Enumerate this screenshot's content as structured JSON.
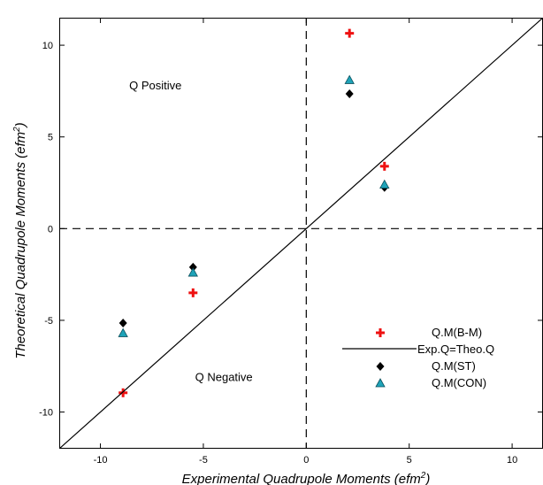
{
  "chart_data": {
    "type": "scatter",
    "xlabel": "Experimental Quadrupole Moments (efm",
    "xlabel_sup": "2",
    "xlabel_end": ")",
    "ylabel": "Theoretical Quadrupole Moments (efm",
    "ylabel_sup": "2",
    "ylabel_end": ")",
    "xlim": [
      -12,
      11.5
    ],
    "ylim": [
      -12,
      11.5
    ],
    "xticks": [
      -10,
      -5,
      0,
      5,
      10
    ],
    "yticks": [
      -10,
      -5,
      0,
      5,
      10
    ],
    "grid": false,
    "legend_position": "bottom-right",
    "annotations": [
      {
        "text": "Q Positive",
        "x": -8.6,
        "y": 7.6
      },
      {
        "text": "Q Negative",
        "x": -5.4,
        "y": -8.3
      }
    ],
    "reference_lines": [
      {
        "orientation": "vertical",
        "value": 0,
        "style": "dashed"
      },
      {
        "orientation": "horizontal",
        "value": 0,
        "style": "dashed"
      }
    ],
    "series": [
      {
        "name": "Q.M(B-M)",
        "marker": "plus",
        "color": "#ee1111",
        "points": [
          [
            -8.9,
            -8.95
          ],
          [
            -5.5,
            -3.5
          ],
          [
            2.1,
            10.65
          ],
          [
            3.8,
            3.4
          ]
        ]
      },
      {
        "name": "Exp.Q=Theo.Q",
        "marker": "line",
        "color": "#000000",
        "points": [
          [
            -12,
            -12
          ],
          [
            11.5,
            11.5
          ]
        ]
      },
      {
        "name": "Q.M(ST)",
        "marker": "diamond",
        "color": "#000000",
        "points": [
          [
            -8.9,
            -5.15
          ],
          [
            -5.5,
            -2.1
          ],
          [
            2.1,
            7.35
          ],
          [
            3.8,
            2.25
          ]
        ]
      },
      {
        "name": "Q.M(CON)",
        "marker": "triangle",
        "color": "#1fa3b8",
        "points": [
          [
            -8.9,
            -5.7
          ],
          [
            -5.5,
            -2.4
          ],
          [
            2.1,
            8.1
          ],
          [
            3.8,
            2.4
          ]
        ]
      }
    ]
  }
}
